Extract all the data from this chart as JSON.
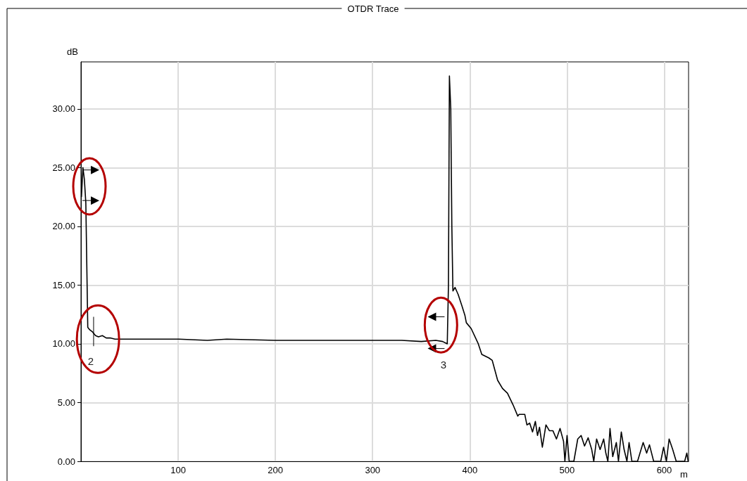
{
  "chart_data": {
    "type": "line",
    "title": "OTDR Trace",
    "xlabel": "m",
    "ylabel": "dB",
    "xlim": [
      0,
      625
    ],
    "ylim": [
      0,
      34
    ],
    "xticks": [
      100,
      200,
      300,
      400,
      500,
      600
    ],
    "yticks": [
      {
        "value": 0,
        "label": "0.00"
      },
      {
        "value": 5,
        "label": "5.00"
      },
      {
        "value": 10,
        "label": "10.00"
      },
      {
        "value": 15,
        "label": "15.00"
      },
      {
        "value": 20,
        "label": "20.00"
      },
      {
        "value": 25,
        "label": "25.00"
      },
      {
        "value": 30,
        "label": "30.00"
      }
    ],
    "grid": true,
    "marker": "none",
    "line_style": "solid",
    "annotations": [
      "2",
      "3"
    ],
    "series": [
      {
        "color": "#000000",
        "x": [
          0.5,
          2,
          3.5,
          5,
          7,
          9,
          12,
          15,
          18,
          22,
          26,
          30,
          35,
          60,
          100,
          130,
          150,
          200,
          250,
          300,
          330,
          350,
          365,
          372,
          376.8,
          378,
          379,
          380.4,
          381.5,
          382.6,
          384.8,
          388,
          392,
          395,
          396.4,
          401.4,
          408.7,
          412.3,
          419.6,
          423,
          428.6,
          433.6,
          438.7,
          444.5,
          449.3,
          450.7,
          456.5,
          458.7,
          461.6,
          464.5,
          467.4,
          469.6,
          471.7,
          474.6,
          478.3,
          481.9,
          485.5,
          489.1,
          492.8,
          496.4,
          497.8,
          500,
          502.2,
          507,
          511,
          514.5,
          518,
          521.7,
          525.4,
          527.5,
          530.4,
          534,
          537.7,
          539.9,
          542,
          544.2,
          547,
          550.7,
          552.9,
          555.8,
          558.7,
          561.6,
          563.8,
          566.7,
          572.5,
          578.3,
          581.9,
          584.8,
          589.1,
          596.4,
          599.3,
          602.2,
          605,
          608.7,
          612.3,
          621,
          623.2,
          624.6
        ],
        "values": [
          22.5,
          25,
          24,
          22,
          11.4,
          11.2,
          11,
          10.7,
          10.6,
          10.7,
          10.5,
          10.5,
          10.4,
          10.4,
          10.4,
          10.3,
          10.4,
          10.3,
          10.3,
          10.3,
          10.3,
          10.2,
          10.3,
          10.2,
          10,
          15,
          32.8,
          30,
          20,
          14.5,
          14.8,
          14.2,
          13.2,
          12.4,
          11.8,
          11.3,
          10,
          9.1,
          8.8,
          8.6,
          6.9,
          6.2,
          5.8,
          4.8,
          3.85,
          4,
          4,
          3.1,
          3.25,
          2.5,
          3.4,
          2.2,
          2.9,
          1.2,
          3.1,
          2.6,
          2.6,
          1.9,
          2.8,
          1.7,
          0,
          2.2,
          0,
          0,
          1.9,
          2.2,
          1.3,
          2,
          1,
          0,
          1.9,
          1,
          1.9,
          0.7,
          0,
          2.8,
          0.4,
          1.6,
          0,
          2.5,
          1,
          0,
          1.6,
          0,
          0,
          1.6,
          0.7,
          1.4,
          0,
          0,
          1.2,
          0,
          1.9,
          1,
          0,
          0,
          0.7,
          0
        ]
      }
    ]
  }
}
